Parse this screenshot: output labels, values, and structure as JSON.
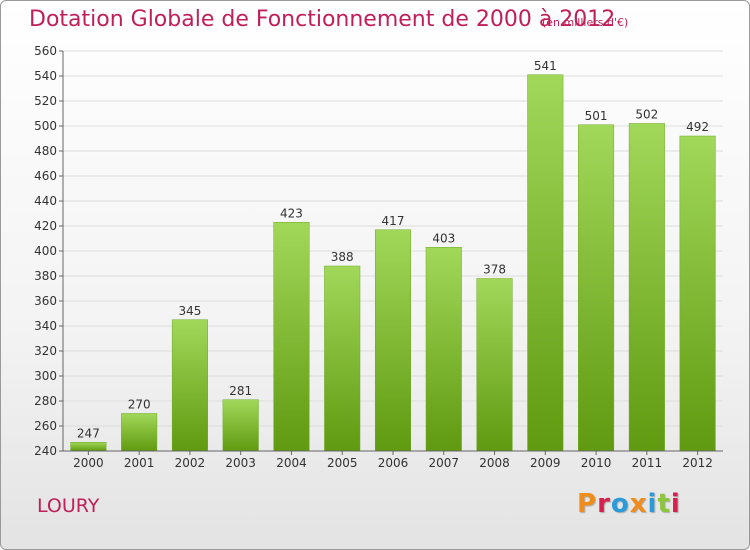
{
  "title": "Dotation Globale de Fonctionnement de 2000 à 2012",
  "subtitle": "(en milliers d'€)",
  "commune": "LOURY",
  "logo": {
    "text": "Proxiti",
    "colors": [
      "#f08c1a",
      "#d8204e",
      "#2a9ad8",
      "#f08c1a",
      "#2a9ad8",
      "#8cc53e",
      "#d8204e"
    ]
  },
  "colors": {
    "bar_top": "#a2d85a",
    "bar_bottom": "#5f9a10",
    "grid": "#dddddd",
    "axis_text": "#333333",
    "title": "#c0205a"
  },
  "chart_data": {
    "type": "bar",
    "categories": [
      "2000",
      "2001",
      "2002",
      "2003",
      "2004",
      "2005",
      "2006",
      "2007",
      "2008",
      "2009",
      "2010",
      "2011",
      "2012"
    ],
    "values": [
      247,
      270,
      345,
      281,
      423,
      388,
      417,
      403,
      378,
      541,
      501,
      502,
      492
    ],
    "title": "Dotation Globale de Fonctionnement de 2000 à 2012",
    "subtitle": "(en milliers d'€)",
    "xlabel": "",
    "ylabel": "",
    "ylim": [
      240,
      560
    ],
    "yticks": [
      240,
      260,
      280,
      300,
      320,
      340,
      360,
      380,
      400,
      420,
      440,
      460,
      480,
      500,
      520,
      540,
      560
    ],
    "grid": true,
    "data_labels": true
  }
}
